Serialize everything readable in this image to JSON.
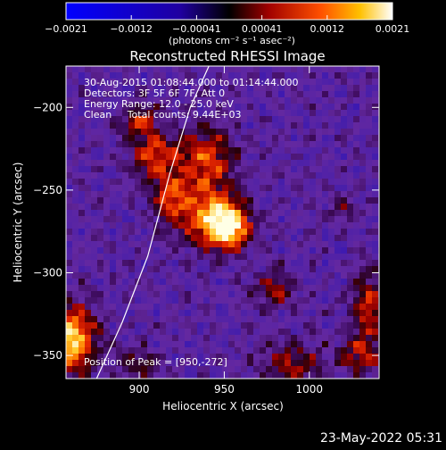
{
  "chart_data": {
    "type": "heatmap",
    "title": "Reconstructed RHESSI Image",
    "xlabel": "Heliocentric X (arcsec)",
    "ylabel": "Heliocentric Y (arcsec)",
    "xlim": [
      857,
      1041
    ],
    "ylim": [
      -364,
      -175
    ],
    "x_ticks": [
      900,
      950,
      1000
    ],
    "y_ticks": [
      -200,
      -250,
      -300,
      -350
    ],
    "x_tick_labels": [
      "900",
      "950",
      "1000"
    ],
    "y_tick_labels": [
      "−200",
      "−250",
      "−300",
      "−350"
    ],
    "colorbar": {
      "range": [
        -0.0021,
        0.0021
      ],
      "tick_labels": [
        "−0.0021",
        "−0.0012",
        "−0.00041",
        "0.00041",
        "0.0012",
        "0.0021"
      ],
      "units": "(photons cm⁻² s⁻¹ asec⁻²)"
    },
    "annotations": [
      "30-Aug-2015 01:08:44.000 to 01:14:44.000",
      "Detectors: 3F 5F 6F 7F, Att 0",
      "Energy Range: 12.0 - 25.0 keV",
      "Clean     Total counts: 9.44E+03"
    ],
    "peak_label": "Position of Peak = [950,-272]",
    "peak": [
      950,
      -272
    ],
    "limb_curve": [
      [
        875,
        -364
      ],
      [
        890,
        -330
      ],
      [
        905,
        -290
      ],
      [
        918,
        -240
      ],
      [
        930,
        -200
      ],
      [
        941,
        -175
      ]
    ],
    "blobs": [
      {
        "x": 952,
        "y": -272,
        "sx": 9,
        "sy": 9,
        "amp": 1.0
      },
      {
        "x": 938,
        "y": -262,
        "sx": 14,
        "sy": 14,
        "amp": 0.55
      },
      {
        "x": 938,
        "y": -230,
        "sx": 12,
        "sy": 12,
        "amp": 0.55
      },
      {
        "x": 908,
        "y": -230,
        "sx": 9,
        "sy": 10,
        "amp": 0.55
      },
      {
        "x": 900,
        "y": -208,
        "sx": 8,
        "sy": 7,
        "amp": 0.45
      },
      {
        "x": 918,
        "y": -255,
        "sx": 7,
        "sy": 10,
        "amp": 0.4
      },
      {
        "x": 858,
        "y": -340,
        "sx": 11,
        "sy": 14,
        "amp": 0.95
      },
      {
        "x": 980,
        "y": -310,
        "sx": 9,
        "sy": 8,
        "amp": 0.35
      },
      {
        "x": 990,
        "y": -355,
        "sx": 12,
        "sy": 9,
        "amp": 0.4
      },
      {
        "x": 1035,
        "y": -320,
        "sx": 7,
        "sy": 14,
        "amp": 0.5
      },
      {
        "x": 1030,
        "y": -350,
        "sx": 9,
        "sy": 9,
        "amp": 0.4
      },
      {
        "x": 900,
        "y": -355,
        "sx": 8,
        "sy": 6,
        "amp": 0.3
      },
      {
        "x": 1020,
        "y": -262,
        "sx": 6,
        "sy": 6,
        "amp": 0.25
      }
    ]
  },
  "footer": {
    "timestamp": "23-May-2022 05:31"
  }
}
